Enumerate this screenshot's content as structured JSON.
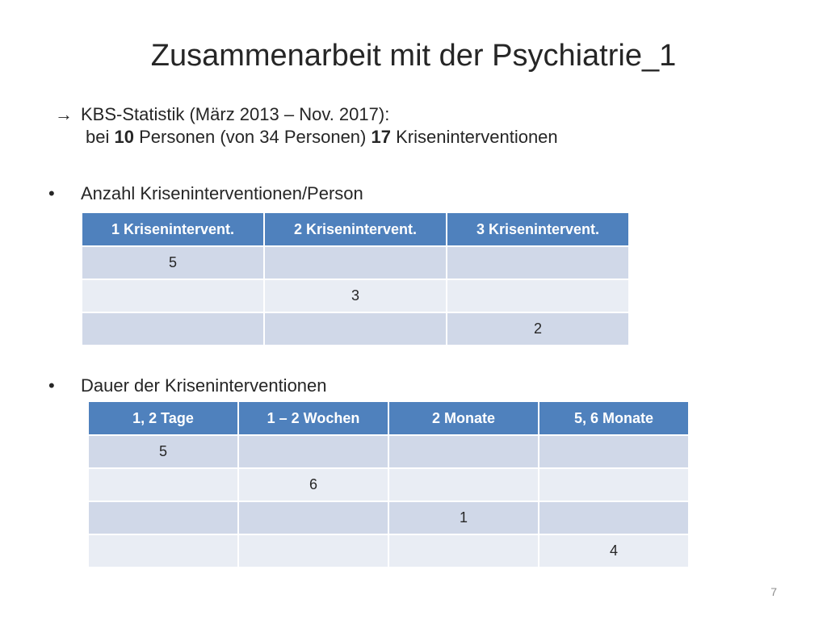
{
  "slide": {
    "title": "Zusammenarbeit mit der Psychiatrie_1",
    "page_number": "7"
  },
  "intro": {
    "arrow": "→",
    "line1": "KBS-Statistik (März 2013 – Nov. 2017):",
    "line2": {
      "pre": "bei ",
      "bold1": "10",
      "mid": " Personen (von 34 Personen) ",
      "bold2": "17",
      "post": " Kriseninterventionen"
    }
  },
  "bullets": [
    {
      "symbol": "•",
      "text": "Anzahl Kriseninterventionen/Person"
    },
    {
      "symbol": "•",
      "text": "Dauer der Kriseninterventionen"
    }
  ],
  "table1": {
    "headers": [
      "1 Krisenintervent.",
      "2 Krisenintervent.",
      "3 Krisenintervent."
    ],
    "rows": [
      [
        "5",
        "",
        ""
      ],
      [
        "",
        "3",
        ""
      ],
      [
        "",
        "",
        "2"
      ]
    ]
  },
  "table2": {
    "headers": [
      "1, 2 Tage",
      "1 – 2 Wochen",
      "2 Monate",
      "5, 6 Monate"
    ],
    "rows": [
      [
        "5",
        "",
        "",
        ""
      ],
      [
        "",
        "6",
        "",
        ""
      ],
      [
        "",
        "",
        "1",
        ""
      ],
      [
        "",
        "",
        "",
        "4"
      ]
    ]
  },
  "colors": {
    "header_bg": "#4f81bd",
    "row_odd": "#d0d8e8",
    "row_even": "#e9edf4"
  }
}
